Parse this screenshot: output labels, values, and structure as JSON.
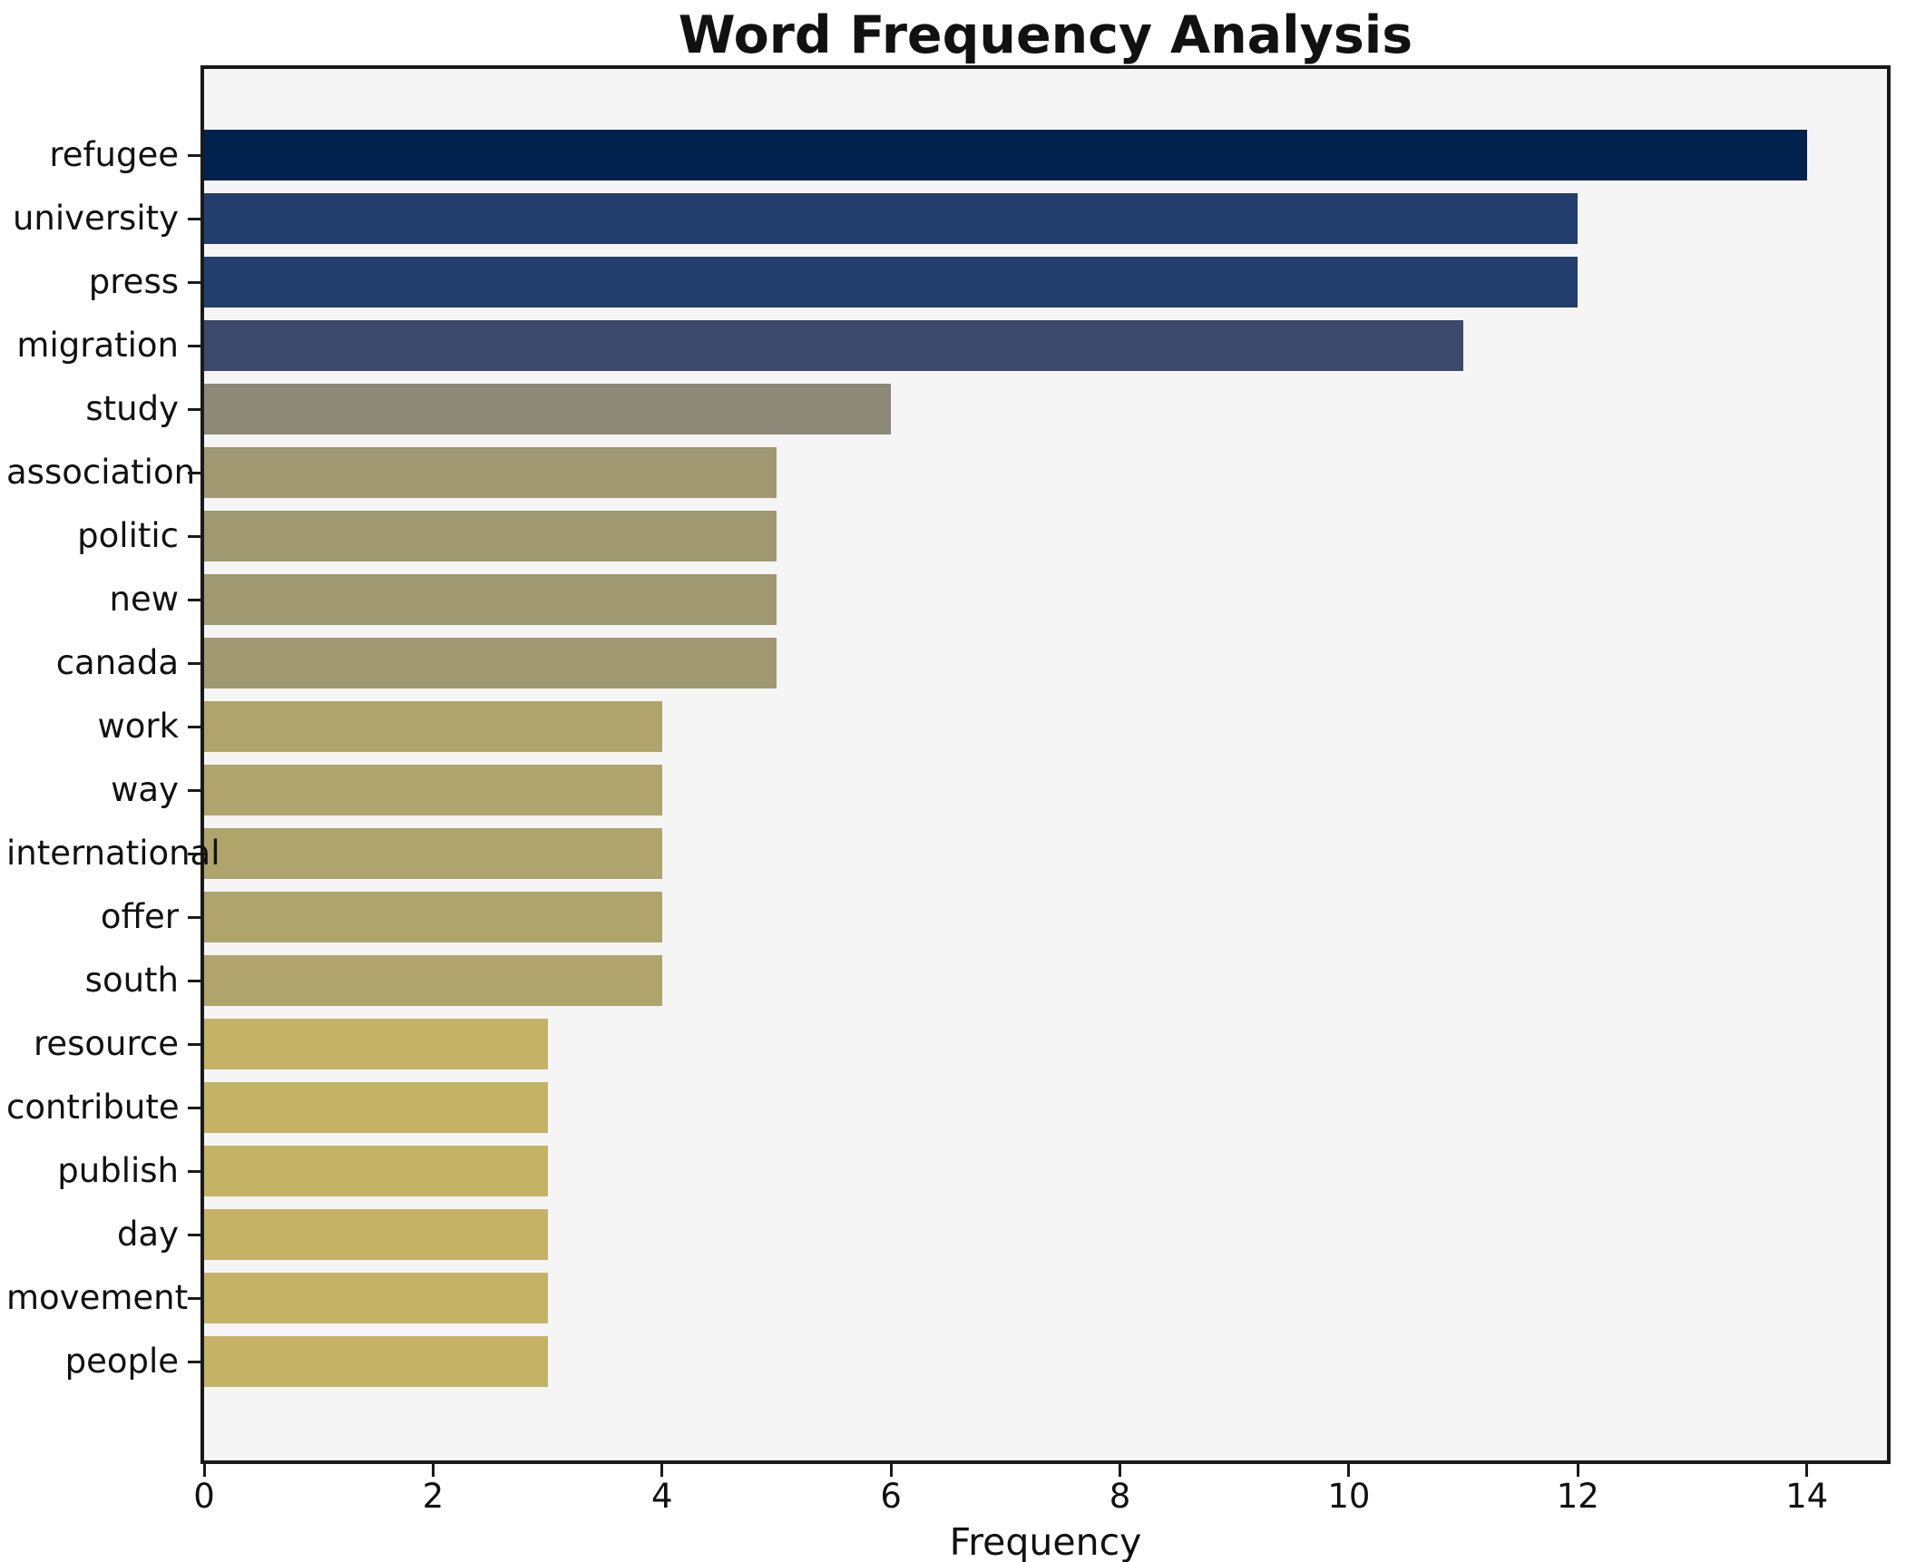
{
  "chart_data": {
    "type": "bar",
    "orientation": "horizontal",
    "title": "Word Frequency Analysis",
    "xlabel": "Frequency",
    "ylabel": "",
    "categories": [
      "refugee",
      "university",
      "press",
      "migration",
      "study",
      "association",
      "politic",
      "new",
      "canada",
      "work",
      "way",
      "international",
      "offer",
      "south",
      "resource",
      "contribute",
      "publish",
      "day",
      "movement",
      "people"
    ],
    "values": [
      14,
      12,
      12,
      11,
      6,
      5,
      5,
      5,
      5,
      4,
      4,
      4,
      4,
      4,
      3,
      3,
      3,
      3,
      3,
      3
    ],
    "bar_colors": [
      "#01224D",
      "#233E6C",
      "#233E6C",
      "#3C496D",
      "#8D8877",
      "#9F9870",
      "#9F9870",
      "#9F9870",
      "#9F9870",
      "#AFA46B",
      "#AFA46B",
      "#AFA46B",
      "#AFA46B",
      "#AFA46B",
      "#C4B365",
      "#C4B365",
      "#C4B365",
      "#C4B365",
      "#C4B365",
      "#C4B365"
    ],
    "xlim": [
      0,
      14.7
    ],
    "xticks": [
      0,
      2,
      4,
      6,
      8,
      10,
      12,
      14
    ],
    "grid": false,
    "legend": null,
    "colors": {
      "figure_background": "#FFFFFF",
      "plot_background": "#F5F5F6",
      "spine": "#1A1A1A",
      "text": "#111111"
    }
  }
}
